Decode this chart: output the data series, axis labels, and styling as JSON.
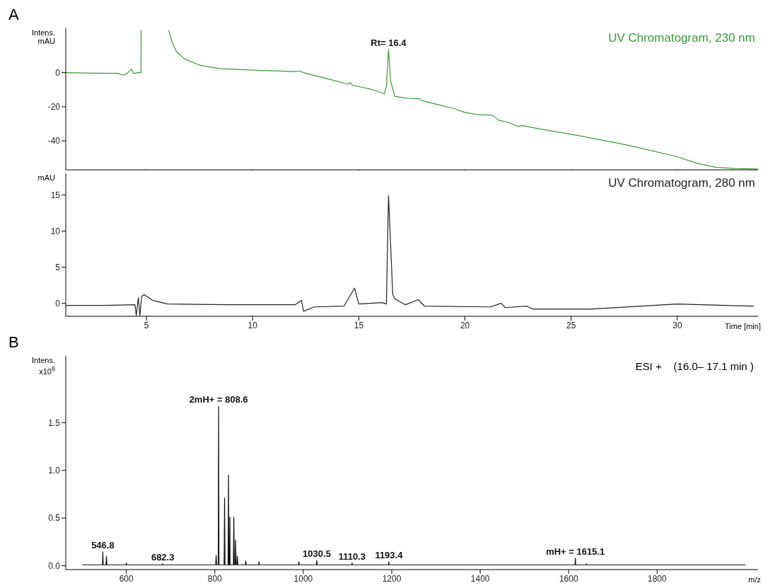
{
  "chart_data": [
    {
      "type": "line",
      "title": "A",
      "ylabel": "Intens. mAU",
      "xlim": [
        1.2,
        33.8
      ],
      "ylim": [
        -57,
        26
      ],
      "xticks": [
        5,
        10,
        15,
        20,
        25,
        30
      ],
      "yticks": [
        -40,
        -20,
        0
      ],
      "tick_labels": "y",
      "marker": "none",
      "legend": "top right",
      "annotations": [
        {
          "text": "Rt= 16.4",
          "x": 16.4,
          "y": 13.5
        }
      ],
      "series": [
        {
          "name": "UV Chromatogram, 230 nm",
          "color": "#3a9a3a",
          "x": [
            1.2,
            2.5,
            3.6,
            3.95,
            4.1,
            4.3,
            4.4,
            4.6,
            4.74,
            4.75,
            5.4,
            6.05,
            6.2,
            6.4,
            6.8,
            7.5,
            8.5,
            10,
            12,
            12.2,
            12.4,
            13.5,
            14.5,
            14.6,
            14.7,
            15.5,
            16.2,
            16.3,
            16.4,
            16.5,
            16.7,
            17.3,
            17.8,
            18.0,
            18.8,
            19.6,
            19.9,
            20.5,
            21.3,
            21.6,
            22.0,
            22.5,
            22.7,
            23.5,
            25.4,
            27.7,
            29.9,
            30.9,
            31.8,
            32.7,
            33.8
          ],
          "values": [
            0,
            -0.3,
            -0.4,
            -1.5,
            -0.3,
            2,
            -0.5,
            0,
            0,
            25,
            null,
            25,
            18,
            12.6,
            8,
            4.4,
            2.3,
            1.5,
            0.6,
            1,
            0,
            -3.5,
            -6.8,
            -5.8,
            -7.4,
            -9.5,
            -12.4,
            -8,
            13.5,
            -5,
            -14,
            -15,
            -15.2,
            -16.5,
            -19,
            -21.5,
            -23,
            -24.5,
            -25,
            -28,
            -29,
            -31.5,
            -31,
            -33,
            -37,
            -42.6,
            -49,
            -53,
            -55.5,
            -56.2,
            -56.5
          ]
        }
      ]
    },
    {
      "type": "line",
      "xlabel": "Time [min]",
      "ylabel": "mAU",
      "xlim": [
        1.2,
        33.8
      ],
      "ylim": [
        -1.8,
        18
      ],
      "xticks": [
        5,
        10,
        15,
        20,
        25,
        30
      ],
      "yticks": [
        0,
        5,
        10,
        15
      ],
      "marker": "none",
      "legend": "top right",
      "series": [
        {
          "name": "UV Chromatogram, 280 nm",
          "color": "#222222",
          "x": [
            1.2,
            3,
            4.46,
            4.52,
            4.62,
            4.69,
            4.78,
            4.9,
            5.3,
            6,
            9,
            12,
            12.3,
            12.4,
            12.9,
            14.3,
            14.8,
            15,
            16.1,
            16.3,
            16.4,
            16.6,
            16.7,
            17.2,
            17.8,
            18.1,
            21.2,
            21.7,
            21.9,
            22.9,
            23.2,
            25.9,
            30,
            33.6
          ],
          "values": [
            -0.3,
            -0.3,
            -0.2,
            -1.7,
            0.8,
            -1.7,
            1,
            1.2,
            0.4,
            -0.1,
            -0.2,
            -0.2,
            0.4,
            -1.1,
            -0.5,
            -0.4,
            2.1,
            -0.1,
            0.1,
            -0.1,
            14.9,
            1.2,
            0.6,
            -0.2,
            0.5,
            -0.4,
            -0.5,
            0,
            -0.6,
            -0.4,
            -0.8,
            -0.8,
            -0.1,
            -0.4
          ]
        }
      ]
    },
    {
      "type": "line",
      "title": "B",
      "xlabel": "m/z",
      "ylabel": "Intens. x10$^{6}$",
      "xlim": [
        463,
        2028
      ],
      "ylim": [
        -0.04,
        2.2
      ],
      "xticks": [
        600,
        800,
        1000,
        1200,
        1400,
        1600,
        1800
      ],
      "yticks": [
        {
          "value": 0,
          "label": "0.0"
        },
        0.5,
        {
          "value": 1,
          "label": "1.0"
        },
        1.5
      ],
      "marker": "none",
      "annotations": [
        "ESI +    (16.0– 17.1 min )",
        {
          "text": "2mH+ = 808.6",
          "x": 808.6,
          "y": 1.67
        },
        {
          "text": "mH+ = 1615.1",
          "x": 1615.1,
          "y": 0.08
        },
        {
          "text": "546.8",
          "x": 546.8,
          "y": 0.146
        },
        {
          "text": "682.3",
          "x": 682.3,
          "y": 0.02
        },
        {
          "text": "1030.5",
          "x": 1030.5,
          "y": 0.055
        },
        {
          "text": "1110.3",
          "x": 1110.3,
          "y": 0.03
        },
        {
          "text": "1193.4",
          "x": 1193.4,
          "y": 0.04
        }
      ],
      "series": [
        {
          "color": "#111111",
          "x": [
            500,
            546,
            546.8,
            547.6,
            554,
            555,
            556,
            599,
            600,
            601,
            681,
            682.3,
            683,
            800,
            802,
            803,
            804,
            807.8,
            808.6,
            809.4,
            821,
            822,
            823,
            830,
            831,
            832,
            833.5,
            834,
            834.5,
            842,
            843,
            844,
            846,
            847,
            848,
            850,
            851,
            852,
            869,
            870,
            871,
            899,
            900,
            901,
            989,
            990,
            991,
            1029.5,
            1030.5,
            1031.5,
            1109.5,
            1110.3,
            1111,
            1192.5,
            1193.4,
            1194.3,
            1614.3,
            1615.1,
            1615.9,
            1639,
            1640,
            1641,
            1660,
            2000
          ],
          "values": [
            0.01,
            0.01,
            0.146,
            0.01,
            0.01,
            0.1,
            0.01,
            0.01,
            0.03,
            0.01,
            0.01,
            0.02,
            0.01,
            0.01,
            0.01,
            0.11,
            0.01,
            0.01,
            1.67,
            0.01,
            0.01,
            0.71,
            0.01,
            0.01,
            0.95,
            0.01,
            0.01,
            0.51,
            0.01,
            0.01,
            0.51,
            0.01,
            0.01,
            0.27,
            0.01,
            0.01,
            0.1,
            0.01,
            0.01,
            0.05,
            0.01,
            0.01,
            0.04,
            0.01,
            0.01,
            0.04,
            0.01,
            0.01,
            0.055,
            0.01,
            0.01,
            0.03,
            0.01,
            0.01,
            0.04,
            0.01,
            0.01,
            0.08,
            0.01,
            0.01,
            0.02,
            0.01,
            0.01,
            0.01
          ]
        }
      ]
    }
  ]
}
